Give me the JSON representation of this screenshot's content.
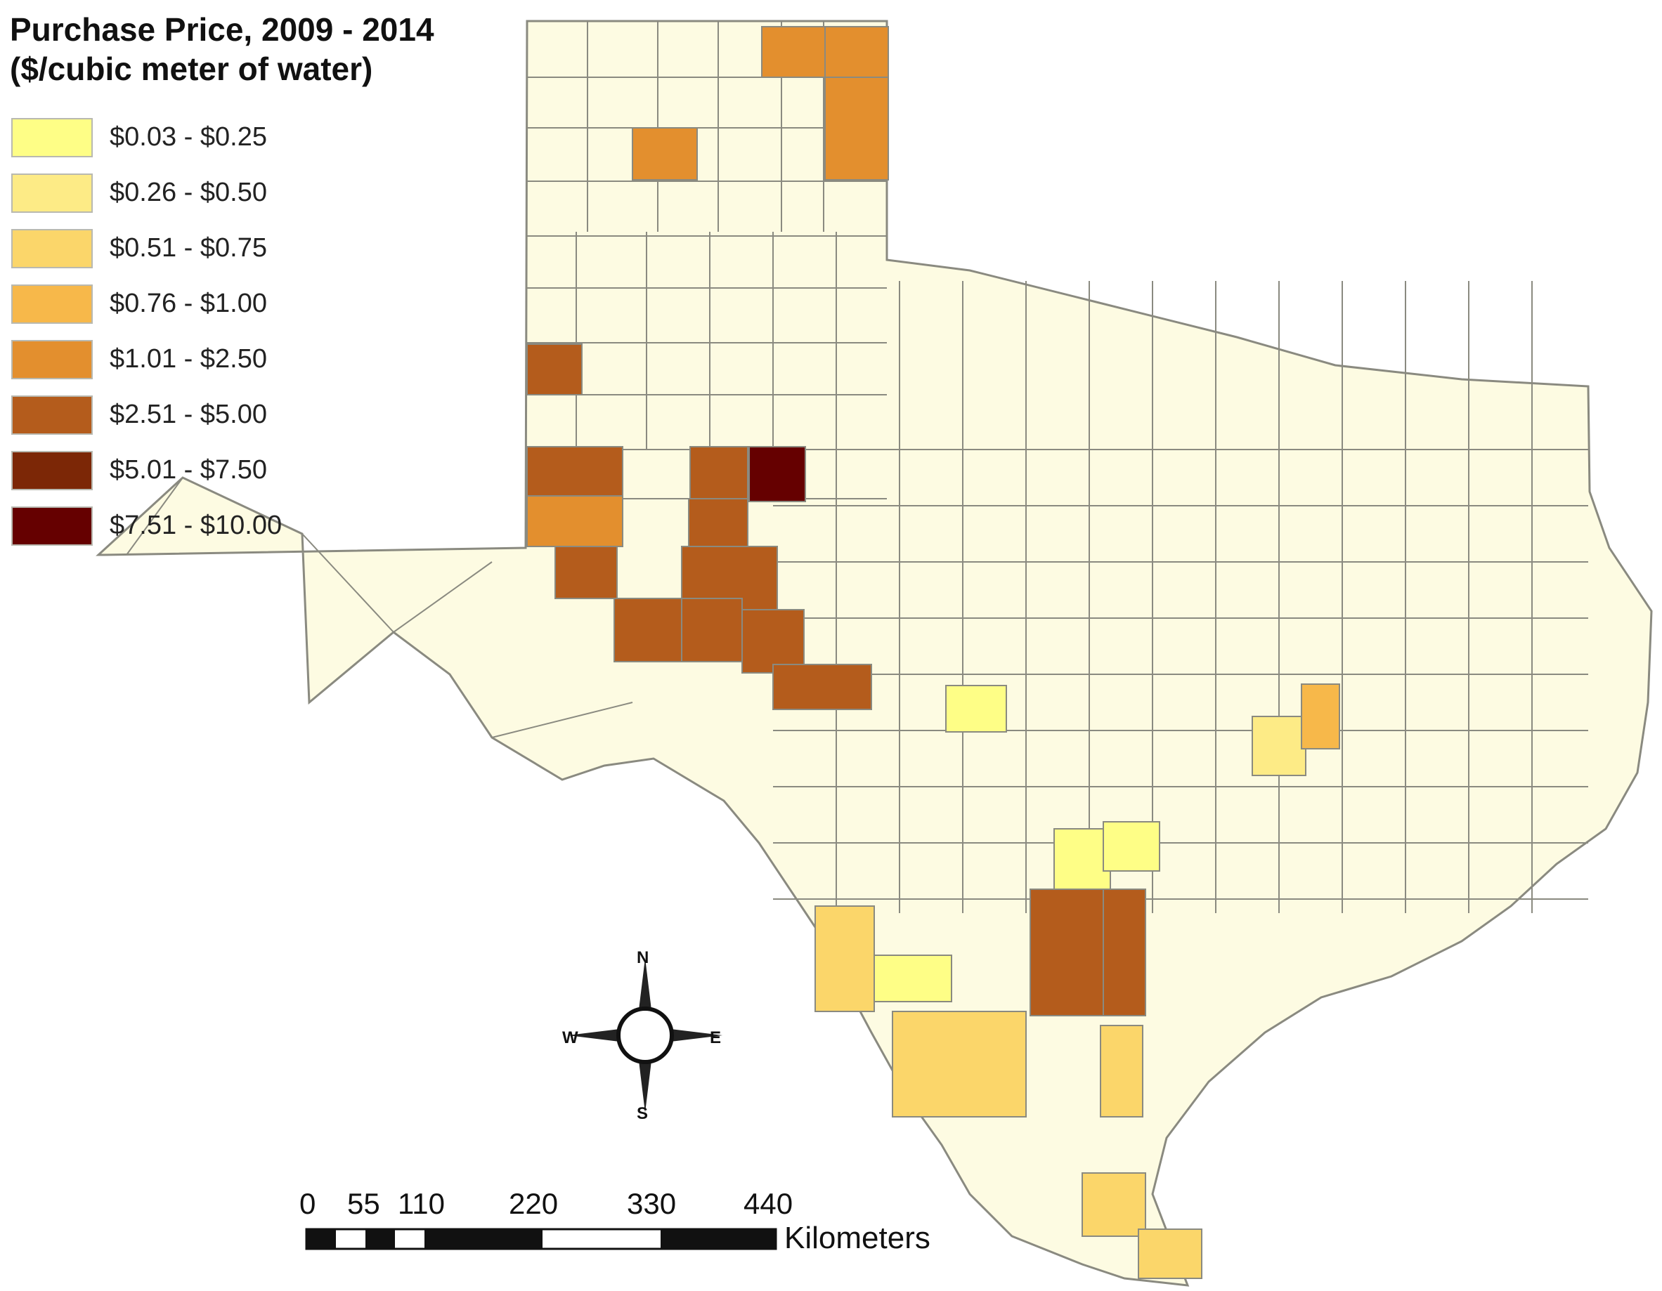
{
  "legend": {
    "title_line1": "Purchase Price, 2009 - 2014",
    "title_line2": "($/cubic meter of water)",
    "classes": [
      {
        "label": "$0.03 - $0.25",
        "color": "#fefe86"
      },
      {
        "label": "$0.26 - $0.50",
        "color": "#fdeb86"
      },
      {
        "label": "$0.51 - $0.75",
        "color": "#fbd66a"
      },
      {
        "label": "$0.76 - $1.00",
        "color": "#f7b84a"
      },
      {
        "label": "$1.01 - $2.50",
        "color": "#e38f2e"
      },
      {
        "label": "$2.51 - $5.00",
        "color": "#b45c1c"
      },
      {
        "label": "$5.01 - $7.50",
        "color": "#7c2706"
      },
      {
        "label": "$7.51 - $10.00",
        "color": "#650000"
      }
    ]
  },
  "base_color": "#fdfbe2",
  "compass": {
    "n": "N",
    "s": "S",
    "e": "E",
    "w": "W"
  },
  "scale_bar": {
    "ticks": [
      "0",
      "55",
      "110",
      "220",
      "330",
      "440"
    ],
    "unit": "Kilometers"
  }
}
